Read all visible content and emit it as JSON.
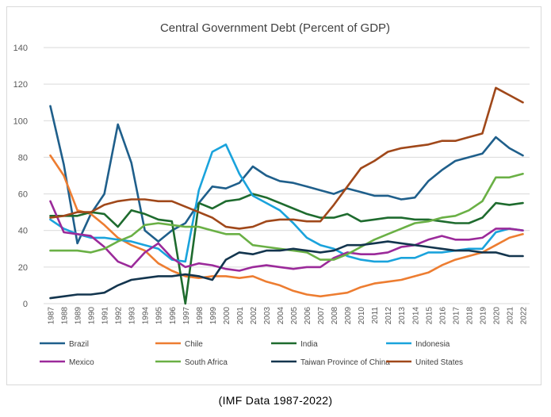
{
  "caption": "(IMF  Data  1987-2022)",
  "chart_data": {
    "type": "line",
    "title": "Central Government Debt (Percent of GDP)",
    "xlabel": "",
    "ylabel": "",
    "ylim": [
      0,
      140
    ],
    "yticks": [
      0,
      20,
      40,
      60,
      80,
      100,
      120,
      140
    ],
    "grid": true,
    "legend_position": "bottom",
    "x": [
      "1987",
      "1988",
      "1989",
      "1990",
      "1991",
      "1992",
      "1993",
      "1994",
      "1995",
      "1996",
      "1997",
      "1998",
      "1999",
      "2000",
      "2001",
      "2002",
      "2003",
      "2004",
      "2005",
      "2006",
      "2007",
      "2008",
      "2009",
      "2010",
      "2011",
      "2012",
      "2013",
      "2014",
      "2015",
      "2016",
      "2017",
      "2018",
      "2019",
      "2020",
      "2021",
      "2022"
    ],
    "series": [
      {
        "name": "Brazil",
        "color": "#1f5f8b",
        "values": [
          108,
          76,
          33,
          49,
          60,
          98,
          77,
          40,
          34,
          40,
          44,
          55,
          64,
          63,
          66,
          75,
          70,
          67,
          66,
          64,
          62,
          60,
          63,
          61,
          59,
          59,
          57,
          58,
          67,
          73,
          78,
          80,
          82,
          91,
          85,
          81
        ]
      },
      {
        "name": "Chile",
        "color": "#ed7d31",
        "values": [
          81,
          70,
          51,
          49,
          43,
          36,
          32,
          29,
          22,
          18,
          15,
          14,
          15,
          15,
          14,
          15,
          12,
          10,
          7,
          5,
          4,
          5,
          6,
          9,
          11,
          12,
          13,
          15,
          17,
          21,
          24,
          26,
          28,
          32,
          36,
          38
        ]
      },
      {
        "name": "India",
        "color": "#1e6b2e",
        "values": [
          48,
          48,
          48,
          50,
          49,
          42,
          51,
          49,
          46,
          45,
          0,
          55,
          52,
          56,
          57,
          60,
          58,
          55,
          52,
          49,
          47,
          47,
          49,
          45,
          46,
          47,
          47,
          46,
          46,
          45,
          44,
          44,
          47,
          55,
          54,
          55
        ]
      },
      {
        "name": "Indonesia",
        "color": "#1aa3dc",
        "values": [
          46,
          41,
          38,
          36,
          36,
          35,
          34,
          32,
          30,
          24,
          23,
          62,
          83,
          87,
          71,
          59,
          55,
          51,
          44,
          36,
          32,
          30,
          26,
          24,
          23,
          23,
          25,
          25,
          28,
          28,
          29,
          30,
          30,
          39,
          41,
          40
        ]
      },
      {
        "name": "Mexico",
        "color": "#9b2a9a",
        "values": [
          56,
          39,
          38,
          37,
          31,
          23,
          20,
          28,
          33,
          25,
          20,
          22,
          21,
          19,
          18,
          20,
          21,
          20,
          19,
          20,
          20,
          25,
          28,
          27,
          27,
          28,
          31,
          32,
          35,
          37,
          35,
          35,
          36,
          41,
          41,
          40
        ]
      },
      {
        "name": "South Africa",
        "color": "#6ab045",
        "values": [
          29,
          29,
          29,
          28,
          30,
          34,
          37,
          43,
          44,
          43,
          42,
          42,
          40,
          38,
          38,
          32,
          31,
          30,
          29,
          28,
          24,
          24,
          27,
          31,
          35,
          38,
          41,
          44,
          45,
          47,
          48,
          51,
          56,
          69,
          69,
          71
        ]
      },
      {
        "name": "Taiwan Province of China",
        "color": "#13354e",
        "values": [
          3,
          4,
          5,
          5,
          6,
          10,
          13,
          14,
          15,
          15,
          16,
          15,
          13,
          24,
          28,
          27,
          29,
          29,
          30,
          29,
          28,
          29,
          32,
          32,
          33,
          34,
          33,
          32,
          31,
          30,
          29,
          29,
          28,
          28,
          26,
          26
        ]
      },
      {
        "name": "United States",
        "color": "#a0481a",
        "values": [
          47,
          48,
          50,
          50,
          54,
          56,
          57,
          57,
          56,
          56,
          53,
          50,
          47,
          42,
          41,
          42,
          45,
          46,
          46,
          45,
          45,
          54,
          64,
          74,
          78,
          83,
          85,
          86,
          87,
          89,
          89,
          91,
          93,
          118,
          114,
          110
        ]
      }
    ]
  }
}
